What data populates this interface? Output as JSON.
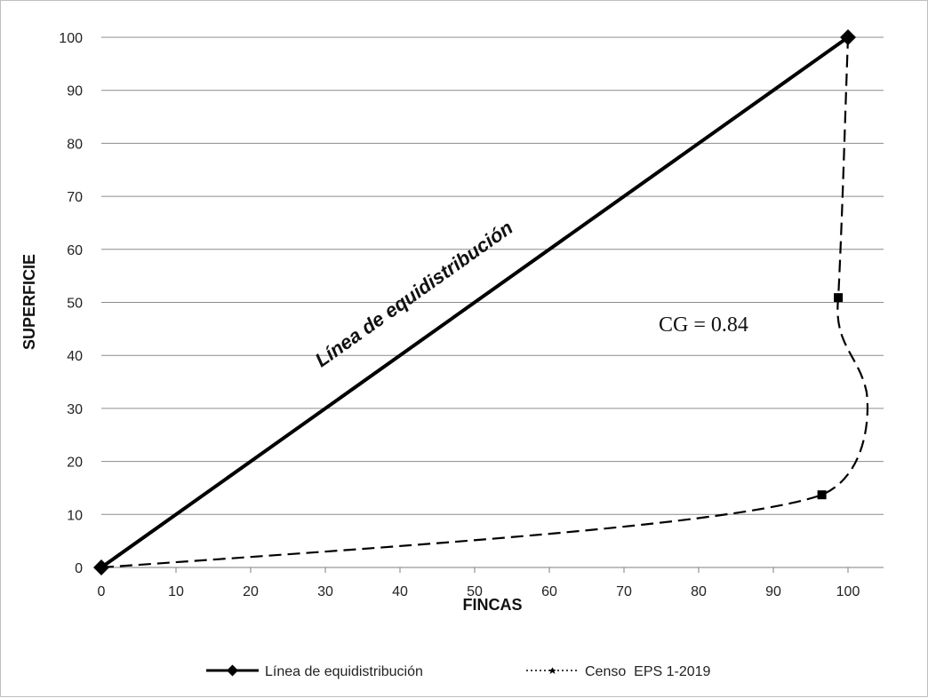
{
  "chart_data": {
    "type": "line",
    "xlabel": "FINCAS",
    "ylabel": "SUPERFICIE",
    "xlim": [
      0,
      100
    ],
    "ylim": [
      0,
      100
    ],
    "x_ticks": [
      0,
      10,
      20,
      30,
      40,
      50,
      60,
      70,
      80,
      90,
      100
    ],
    "y_ticks": [
      0,
      10,
      20,
      30,
      40,
      50,
      60,
      70,
      80,
      90,
      100
    ],
    "grid": "horizontal",
    "legend_position": "bottom",
    "series": [
      {
        "name": "Línea de equidistribución",
        "style": "solid",
        "marker": "diamond",
        "color": "#000000",
        "x": [
          0,
          100
        ],
        "y": [
          0,
          100
        ]
      },
      {
        "name": "Censo  EPS 1-2019",
        "style": "dashed",
        "marker": "square",
        "color": "#000000",
        "x": [
          0,
          96.5,
          98.7,
          100
        ],
        "y": [
          0,
          13.7,
          50.9,
          100
        ]
      }
    ],
    "annotations": [
      {
        "text": "Línea de equidistribución"
      },
      {
        "text": "CG = 0.84"
      }
    ]
  }
}
